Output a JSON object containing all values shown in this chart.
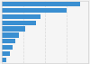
{
  "values": [
    1450,
    1200,
    720,
    640,
    440,
    320,
    250,
    200,
    155,
    75
  ],
  "bar_color": "#3a8fd1",
  "background_color": "#f0f0f0",
  "plot_bg_color": "#f5f5f5",
  "xlim": [
    0,
    1600
  ],
  "figsize": [
    1.0,
    0.71
  ],
  "dpi": 100,
  "bar_height": 0.78,
  "grid_color": "#d9d9d9",
  "grid_values": [
    400,
    800,
    1200
  ]
}
